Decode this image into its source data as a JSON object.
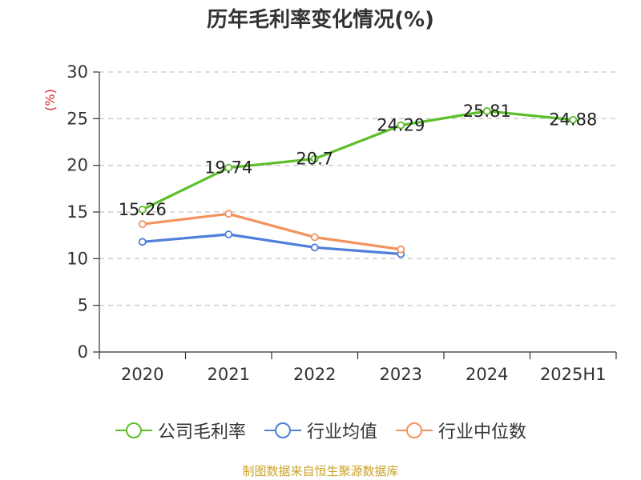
{
  "chart_data": {
    "type": "line",
    "title": "历年毛利率变化情况(%)",
    "ylabel": "(%)",
    "xlabel": "",
    "categories": [
      "2020",
      "2021",
      "2022",
      "2023",
      "2024",
      "2025H1"
    ],
    "ylim": [
      0,
      30
    ],
    "yticks": [
      0,
      5,
      10,
      15,
      20,
      25,
      30
    ],
    "grid": true,
    "legend_position": "bottom",
    "series": [
      {
        "name": "公司毛利率",
        "color": "#5cbf2a",
        "values": [
          15.26,
          19.74,
          20.7,
          24.29,
          25.81,
          24.88
        ],
        "labels": [
          "15.26",
          "19.74",
          "20.7",
          "24.29",
          "25.81",
          "24.88"
        ]
      },
      {
        "name": "行业均值",
        "color": "#4f7fd9",
        "values": [
          11.8,
          12.6,
          11.2,
          10.5,
          null,
          null
        ]
      },
      {
        "name": "行业中位数",
        "color": "#f4925c",
        "values": [
          13.7,
          14.8,
          12.3,
          11.0,
          null,
          null
        ]
      }
    ]
  },
  "footer": {
    "source": "制图数据来自恒生聚源数据库"
  }
}
